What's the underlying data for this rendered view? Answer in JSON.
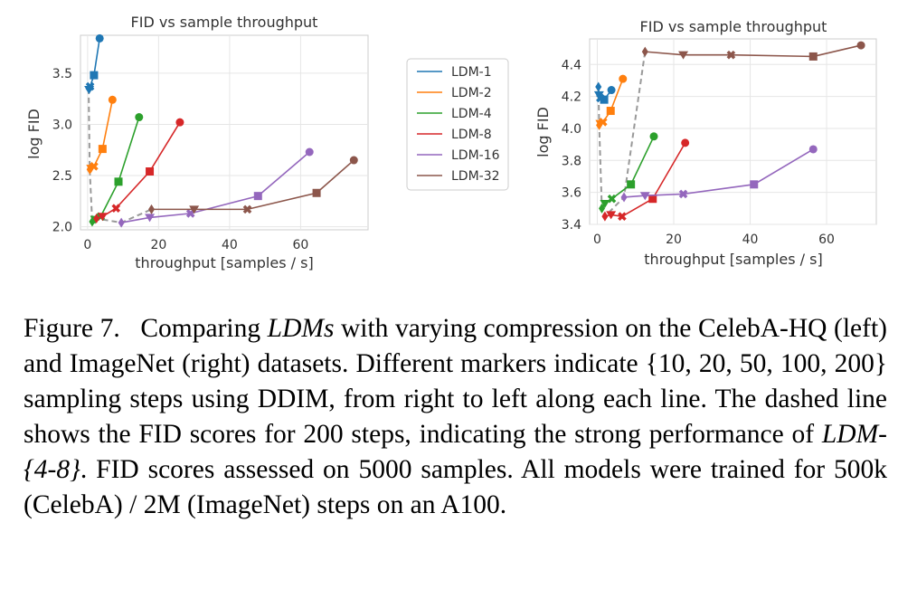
{
  "chart_data": [
    {
      "type": "line",
      "dataset": "CelebA-HQ",
      "title": "FID vs sample throughput",
      "xlabel": "throughput [samples / s]",
      "ylabel": "log FID",
      "xlim": [
        -2,
        79
      ],
      "ylim": [
        1.97,
        3.87
      ],
      "xticks": [
        "0",
        "20",
        "40",
        "60"
      ],
      "yticks": [
        "2.0",
        "2.5",
        "3.0",
        "3.5"
      ],
      "grid": true,
      "legend": "outside-right",
      "markers_right_to_left": [
        "circle",
        "square",
        "x",
        "triangle-down",
        "diamond"
      ],
      "sampling_steps": [
        10,
        20,
        50,
        100,
        200
      ],
      "series": [
        {
          "name": "LDM-1",
          "color": "#1f77b4",
          "x": [
            3.4,
            1.8,
            0.7,
            0.45,
            0.3
          ],
          "y": [
            3.84,
            3.48,
            3.37,
            3.34,
            3.35
          ]
        },
        {
          "name": "LDM-2",
          "color": "#ff7f0e",
          "x": [
            7.0,
            4.2,
            1.8,
            1.0,
            0.6
          ],
          "y": [
            3.24,
            2.76,
            2.59,
            2.57,
            2.56
          ]
        },
        {
          "name": "LDM-4",
          "color": "#2ca02c",
          "x": [
            14.5,
            8.7,
            3.7,
            2.1,
            1.3
          ],
          "y": [
            3.07,
            2.44,
            2.1,
            2.07,
            2.05
          ]
        },
        {
          "name": "LDM-8",
          "color": "#d62728",
          "x": [
            26.0,
            17.5,
            8.0,
            4.2,
            2.5
          ],
          "y": [
            3.02,
            2.54,
            2.18,
            2.1,
            2.08
          ]
        },
        {
          "name": "LDM-16",
          "color": "#9467bd",
          "x": [
            62.5,
            48.0,
            29.0,
            17.5,
            9.5
          ],
          "y": [
            2.73,
            2.3,
            2.13,
            2.09,
            2.04
          ]
        },
        {
          "name": "LDM-32",
          "color": "#8c564b",
          "x": [
            75.0,
            64.5,
            45.0,
            30.0,
            18.0
          ],
          "y": [
            2.65,
            2.33,
            2.17,
            2.17,
            2.17
          ]
        },
        {
          "name": "200 steps",
          "style": "dashed",
          "color": "#999999",
          "x": [
            0.3,
            0.6,
            1.3,
            2.5,
            9.5,
            18.0
          ],
          "y": [
            3.35,
            2.56,
            2.05,
            2.08,
            2.04,
            2.17
          ]
        }
      ]
    },
    {
      "type": "line",
      "dataset": "ImageNet",
      "title": "FID vs sample throughput",
      "xlabel": "throughput [samples / s]",
      "ylabel": "log FID",
      "xlim": [
        -2,
        73
      ],
      "ylim": [
        3.4,
        4.56
      ],
      "xticks": [
        "0",
        "20",
        "40",
        "60"
      ],
      "yticks": [
        "3.4",
        "3.6",
        "3.8",
        "4.0",
        "4.2",
        "4.4"
      ],
      "grid": true,
      "markers_right_to_left": [
        "circle",
        "square",
        "x",
        "triangle-down",
        "diamond"
      ],
      "sampling_steps": [
        10,
        20,
        50,
        100,
        200
      ],
      "series": [
        {
          "name": "LDM-1",
          "color": "#1f77b4",
          "x": [
            3.7,
            1.8,
            0.8,
            0.45,
            0.3
          ],
          "y": [
            4.24,
            4.18,
            4.19,
            4.21,
            4.26
          ]
        },
        {
          "name": "LDM-2",
          "color": "#ff7f0e",
          "x": [
            6.7,
            3.5,
            1.5,
            0.8,
            0.5
          ],
          "y": [
            4.31,
            4.11,
            4.04,
            4.03,
            4.02
          ]
        },
        {
          "name": "LDM-4",
          "color": "#2ca02c",
          "x": [
            14.8,
            8.8,
            3.8,
            2.0,
            1.2
          ],
          "y": [
            3.95,
            3.65,
            3.56,
            3.53,
            3.5
          ]
        },
        {
          "name": "LDM-8",
          "color": "#d62728",
          "x": [
            23.0,
            14.5,
            6.5,
            3.6,
            2.0
          ],
          "y": [
            3.91,
            3.56,
            3.45,
            3.46,
            3.45
          ]
        },
        {
          "name": "LDM-16",
          "color": "#9467bd",
          "x": [
            56.5,
            41.0,
            22.5,
            12.5,
            7.0
          ],
          "y": [
            3.87,
            3.65,
            3.59,
            3.58,
            3.57
          ]
        },
        {
          "name": "LDM-32",
          "color": "#8c564b",
          "x": [
            69.0,
            56.5,
            35.0,
            22.5,
            12.5
          ],
          "y": [
            4.52,
            4.45,
            4.46,
            4.46,
            4.48
          ]
        },
        {
          "name": "200 steps",
          "style": "dashed",
          "color": "#999999",
          "x": [
            0.3,
            0.5,
            1.2,
            2.0,
            7.0,
            12.5
          ],
          "y": [
            4.26,
            4.02,
            3.5,
            3.45,
            3.57,
            4.48
          ]
        }
      ]
    }
  ],
  "caption": {
    "label": "Figure 7.",
    "pre": "Comparing ",
    "em1": "LDMs",
    "mid1": " with varying compression on the CelebA-HQ (left) and ImageNet (right) datasets. Different markers indicate ",
    "steps_set": "{10, 20, 50, 100, 200}",
    "mid2": " sampling steps using DDIM, from right to left along each line. The dashed line shows the FID scores for 200 steps, indicating the strong performance of ",
    "em2": "LDM-{4-8}",
    "post": ". FID scores assessed on 5000 samples. All models were trained for 500k (CelebA) / 2M (ImageNet) steps on an A100."
  }
}
